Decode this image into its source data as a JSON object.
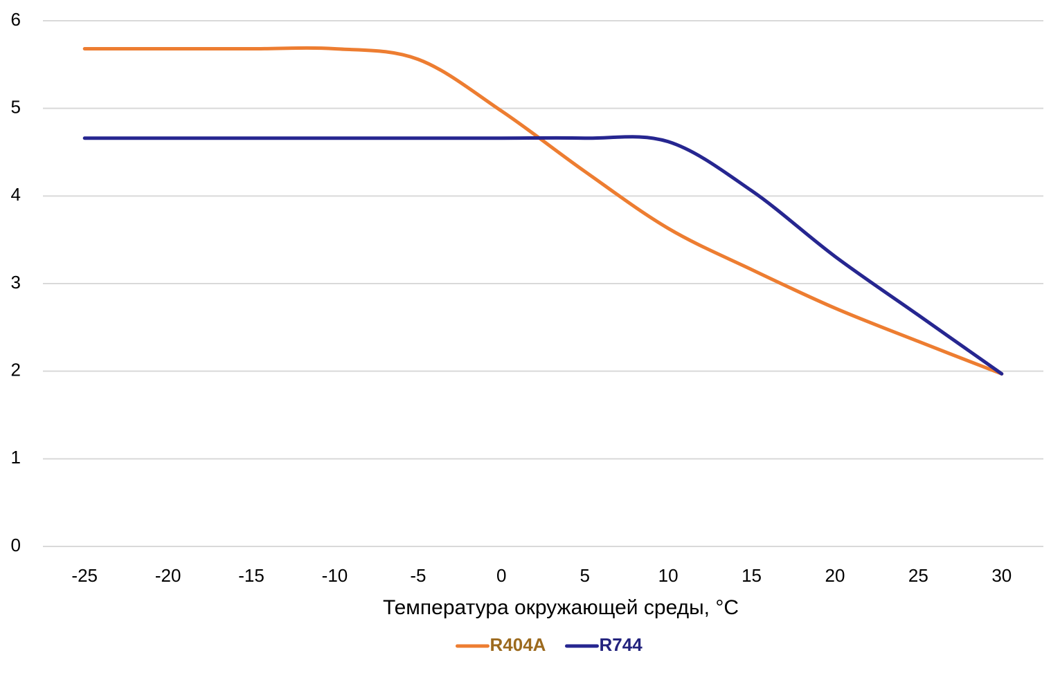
{
  "chart_data": {
    "type": "line",
    "x_label": "Температура окружающей среды, °C",
    "x": [
      -25,
      -20,
      -15,
      -10,
      -5,
      0,
      5,
      10,
      15,
      20,
      25,
      30
    ],
    "xlim": [
      -27.5,
      32.5
    ],
    "xticks": [
      -25,
      -20,
      -15,
      -10,
      -5,
      0,
      5,
      10,
      15,
      20,
      25,
      30
    ],
    "ylim": [
      0,
      6
    ],
    "yticks": [
      0,
      1,
      2,
      3,
      4,
      5,
      6
    ],
    "grid": true,
    "legend": "bottom",
    "series": [
      {
        "name": "R404A",
        "color": "#ed7d31",
        "values": [
          5.68,
          5.68,
          5.68,
          5.68,
          5.56,
          4.97,
          4.28,
          3.63,
          3.16,
          2.72,
          2.34,
          1.97
        ]
      },
      {
        "name": "R744",
        "color": "#262690",
        "values": [
          4.66,
          4.66,
          4.66,
          4.66,
          4.66,
          4.66,
          4.66,
          4.62,
          4.06,
          3.31,
          2.64,
          1.97
        ]
      }
    ]
  }
}
